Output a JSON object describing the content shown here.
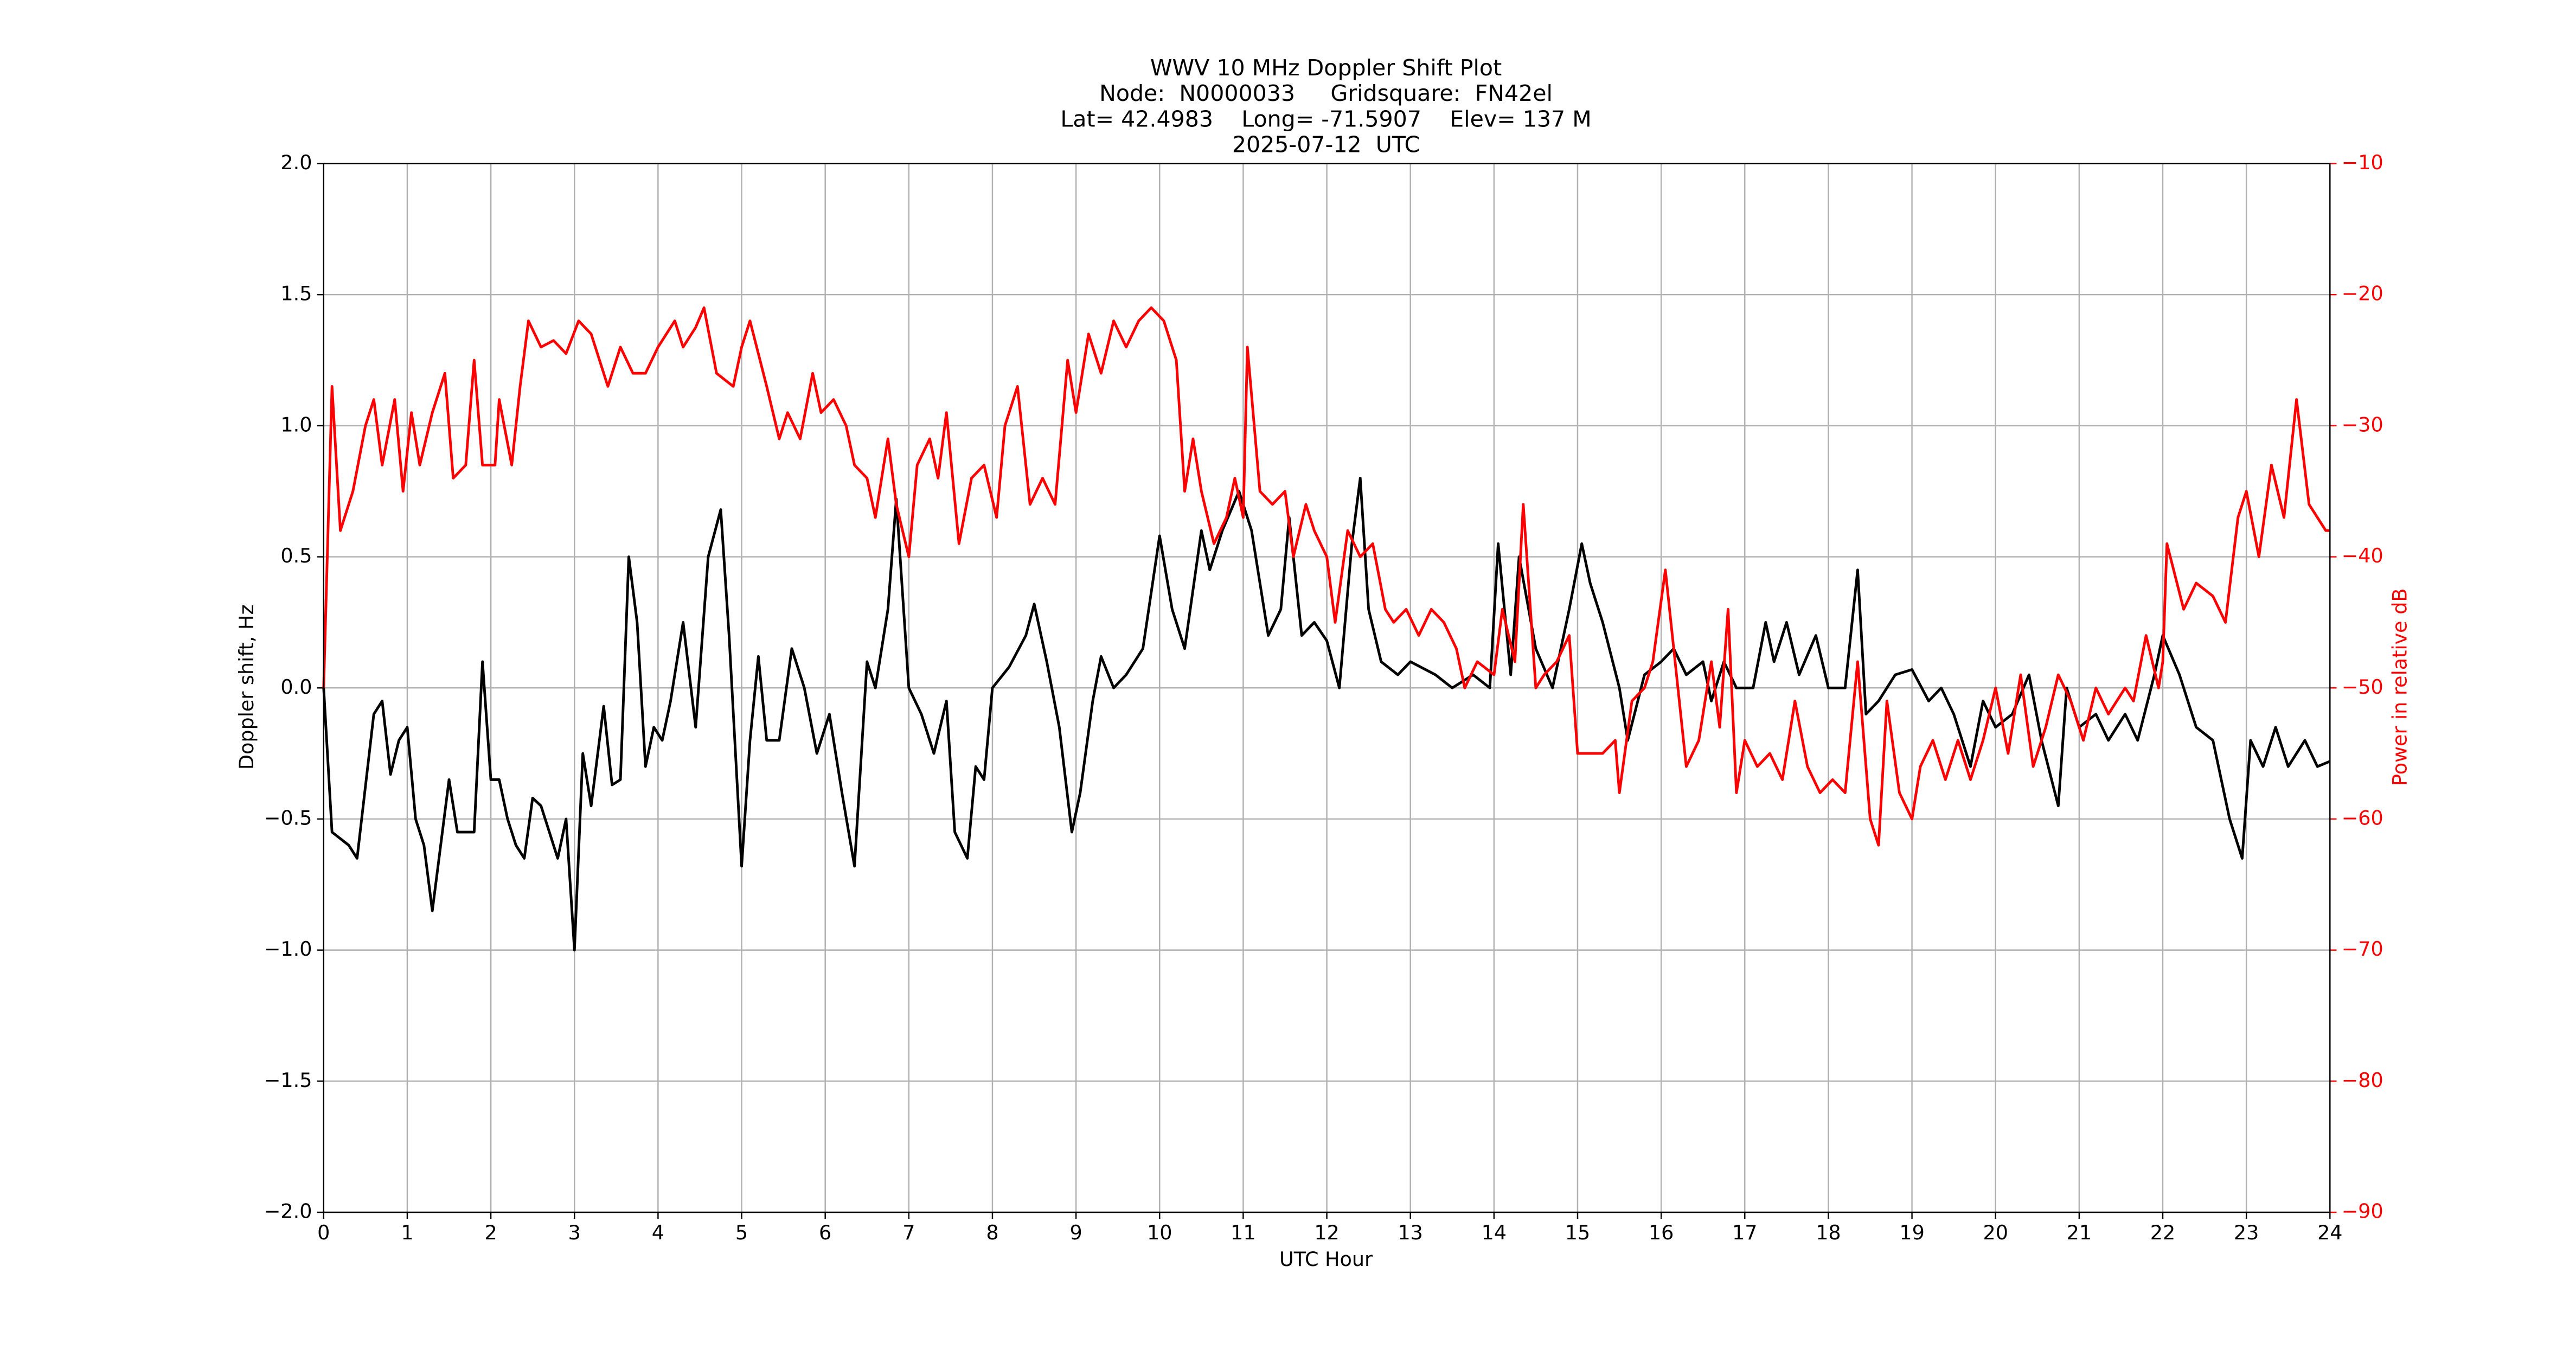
{
  "chart_data": {
    "type": "line",
    "title": [
      "WWV 10 MHz Doppler Shift Plot",
      "Node:  N0000033     Gridsquare:  FN42el",
      "Lat= 42.4983    Long= -71.5907    Elev= 137 M",
      "2025-07-12  UTC"
    ],
    "xlabel": "UTC Hour",
    "ylabel": "Doppler shift, Hz",
    "y2label": "Power in relative dB",
    "xlim": [
      0,
      24
    ],
    "xticks": [
      0,
      1,
      2,
      3,
      4,
      5,
      6,
      7,
      8,
      9,
      10,
      11,
      12,
      13,
      14,
      15,
      16,
      17,
      18,
      19,
      20,
      21,
      22,
      23,
      24
    ],
    "ylim": [
      -2,
      2
    ],
    "yticks": [
      {
        "value": -2,
        "label": "−2.0"
      },
      {
        "value": -1.5,
        "label": "−1.5"
      },
      {
        "value": -1,
        "label": "−1.0"
      },
      {
        "value": -0.5,
        "label": "−0.5"
      },
      {
        "value": 0,
        "label": "0.0"
      },
      {
        "value": 0.5,
        "label": "0.5"
      },
      {
        "value": 1,
        "label": "1.0"
      },
      {
        "value": 1.5,
        "label": "1.5"
      },
      {
        "value": 2,
        "label": "2.0"
      }
    ],
    "y2lim": [
      -90,
      -10
    ],
    "y2ticks": [
      {
        "value": -90,
        "label": "−90"
      },
      {
        "value": -80,
        "label": "−80"
      },
      {
        "value": -70,
        "label": "−70"
      },
      {
        "value": -60,
        "label": "−60"
      },
      {
        "value": -50,
        "label": "−50"
      },
      {
        "value": -40,
        "label": "−40"
      },
      {
        "value": -30,
        "label": "−30"
      },
      {
        "value": -20,
        "label": "−20"
      },
      {
        "value": -10,
        "label": "−10"
      }
    ],
    "grid": true,
    "y2color": "#ff0000",
    "series": [
      {
        "color": "#000000",
        "axis": "y",
        "x": [
          0,
          0.1,
          0.3,
          0.4,
          0.6,
          0.7,
          0.8,
          0.9,
          1.0,
          1.1,
          1.2,
          1.3,
          1.5,
          1.6,
          1.8,
          1.9,
          2.0,
          2.1,
          2.2,
          2.3,
          2.4,
          2.5,
          2.6,
          2.8,
          2.9,
          3.0,
          3.1,
          3.2,
          3.35,
          3.45,
          3.55,
          3.65,
          3.75,
          3.85,
          3.95,
          4.05,
          4.15,
          4.3,
          4.45,
          4.6,
          4.75,
          4.85,
          5.0,
          5.1,
          5.2,
          5.3,
          5.45,
          5.6,
          5.75,
          5.9,
          6.05,
          6.2,
          6.35,
          6.5,
          6.6,
          6.75,
          6.85,
          7.0,
          7.15,
          7.3,
          7.45,
          7.55,
          7.7,
          7.8,
          7.9,
          8.0,
          8.2,
          8.4,
          8.5,
          8.65,
          8.8,
          8.95,
          9.05,
          9.2,
          9.3,
          9.45,
          9.6,
          9.8,
          10.0,
          10.15,
          10.3,
          10.5,
          10.6,
          10.75,
          10.95,
          11.1,
          11.3,
          11.45,
          11.55,
          11.7,
          11.85,
          12.0,
          12.15,
          12.3,
          12.4,
          12.5,
          12.65,
          12.85,
          13.0,
          13.3,
          13.5,
          13.75,
          13.95,
          14.05,
          14.2,
          14.3,
          14.5,
          14.7,
          14.9,
          15.05,
          15.15,
          15.3,
          15.5,
          15.6,
          15.8,
          16.0,
          16.15,
          16.3,
          16.5,
          16.6,
          16.75,
          16.9,
          17.1,
          17.25,
          17.35,
          17.5,
          17.65,
          17.85,
          18.0,
          18.2,
          18.35,
          18.45,
          18.6,
          18.8,
          19.0,
          19.2,
          19.35,
          19.5,
          19.7,
          19.85,
          20.0,
          20.2,
          20.4,
          20.55,
          20.75,
          20.85,
          21.0,
          21.2,
          21.35,
          21.55,
          21.7,
          21.9,
          22.0,
          22.2,
          22.4,
          22.6,
          22.8,
          22.95,
          23.05,
          23.2,
          23.35,
          23.5,
          23.7,
          23.85,
          24.0
        ],
        "values": [
          0,
          -0.55,
          -0.6,
          -0.65,
          -0.1,
          -0.05,
          -0.33,
          -0.2,
          -0.15,
          -0.5,
          -0.6,
          -0.85,
          -0.35,
          -0.55,
          -0.55,
          0.1,
          -0.35,
          -0.35,
          -0.5,
          -0.6,
          -0.65,
          -0.42,
          -0.45,
          -0.65,
          -0.5,
          -1.0,
          -0.25,
          -0.45,
          -0.07,
          -0.37,
          -0.35,
          0.5,
          0.25,
          -0.3,
          -0.15,
          -0.2,
          -0.05,
          0.25,
          -0.15,
          0.5,
          0.68,
          0.2,
          -0.68,
          -0.2,
          0.12,
          -0.2,
          -0.2,
          0.15,
          0,
          -0.25,
          -0.1,
          -0.4,
          -0.68,
          0.1,
          0,
          0.3,
          0.72,
          0,
          -0.1,
          -0.25,
          -0.05,
          -0.55,
          -0.65,
          -0.3,
          -0.35,
          0,
          0.08,
          0.2,
          0.32,
          0.1,
          -0.15,
          -0.55,
          -0.4,
          -0.05,
          0.12,
          0,
          0.05,
          0.15,
          0.58,
          0.3,
          0.15,
          0.6,
          0.45,
          0.6,
          0.75,
          0.6,
          0.2,
          0.3,
          0.65,
          0.2,
          0.25,
          0.18,
          0,
          0.55,
          0.8,
          0.3,
          0.1,
          0.05,
          0.1,
          0.05,
          0,
          0.05,
          0,
          0.55,
          0.05,
          0.5,
          0.15,
          0,
          0.3,
          0.55,
          0.4,
          0.25,
          0,
          -0.2,
          0.05,
          0.1,
          0.15,
          0.05,
          0.1,
          -0.05,
          0.1,
          0,
          0,
          0.25,
          0.1,
          0.25,
          0.05,
          0.2,
          0,
          0,
          0.45,
          -0.1,
          -0.05,
          0.05,
          0.07,
          -0.05,
          0,
          -0.1,
          -0.3,
          -0.05,
          -0.15,
          -0.1,
          0.05,
          -0.2,
          -0.45,
          0,
          -0.15,
          -0.1,
          -0.2,
          -0.1,
          -0.2,
          0.05,
          0.2,
          0.05,
          -0.15,
          -0.2,
          -0.5,
          -0.65,
          -0.2,
          -0.3,
          -0.15,
          -0.3,
          -0.2,
          -0.3,
          -0.28
        ]
      },
      {
        "color": "#ff0000",
        "axis": "y2",
        "x": [
          0,
          0.1,
          0.2,
          0.35,
          0.5,
          0.6,
          0.7,
          0.85,
          0.95,
          1.05,
          1.15,
          1.3,
          1.45,
          1.55,
          1.7,
          1.8,
          1.9,
          2.05,
          2.1,
          2.25,
          2.35,
          2.45,
          2.6,
          2.75,
          2.9,
          3.05,
          3.2,
          3.4,
          3.55,
          3.7,
          3.85,
          4.0,
          4.2,
          4.3,
          4.45,
          4.55,
          4.7,
          4.9,
          5.0,
          5.1,
          5.3,
          5.45,
          5.55,
          5.7,
          5.85,
          5.95,
          6.1,
          6.25,
          6.35,
          6.5,
          6.6,
          6.75,
          6.85,
          7.0,
          7.1,
          7.25,
          7.35,
          7.45,
          7.6,
          7.75,
          7.9,
          8.05,
          8.15,
          8.3,
          8.45,
          8.6,
          8.75,
          8.9,
          9.0,
          9.15,
          9.3,
          9.45,
          9.6,
          9.75,
          9.9,
          10.05,
          10.2,
          10.3,
          10.4,
          10.5,
          10.65,
          10.8,
          10.9,
          11.0,
          11.05,
          11.2,
          11.35,
          11.5,
          11.6,
          11.75,
          11.85,
          12.0,
          12.1,
          12.25,
          12.4,
          12.55,
          12.7,
          12.8,
          12.95,
          13.1,
          13.25,
          13.4,
          13.55,
          13.65,
          13.8,
          14.0,
          14.1,
          14.25,
          14.35,
          14.5,
          14.6,
          14.75,
          14.9,
          15.0,
          15.15,
          15.3,
          15.45,
          15.5,
          15.65,
          15.8,
          15.9,
          16.05,
          16.15,
          16.3,
          16.45,
          16.6,
          16.7,
          16.8,
          16.9,
          17.0,
          17.15,
          17.3,
          17.45,
          17.6,
          17.75,
          17.9,
          18.05,
          18.2,
          18.35,
          18.5,
          18.6,
          18.7,
          18.85,
          19.0,
          19.1,
          19.25,
          19.4,
          19.55,
          19.7,
          19.85,
          20.0,
          20.15,
          20.3,
          20.45,
          20.6,
          20.75,
          20.9,
          21.05,
          21.2,
          21.35,
          21.55,
          21.65,
          21.8,
          21.95,
          22.0,
          22.05,
          22.25,
          22.4,
          22.6,
          22.75,
          22.9,
          23.0,
          23.15,
          23.3,
          23.45,
          23.6,
          23.75,
          23.95,
          24.0
        ],
        "values": [
          -50,
          -27,
          -38,
          -35,
          -30,
          -28,
          -33,
          -28,
          -35,
          -29,
          -33,
          -29,
          -26,
          -34,
          -33,
          -25,
          -33,
          -33,
          -28,
          -33,
          -27,
          -22,
          -24,
          -23.5,
          -24.5,
          -22,
          -23,
          -27,
          -24,
          -26,
          -26,
          -24,
          -22,
          -24,
          -22.5,
          -21,
          -26,
          -27,
          -24,
          -22,
          -27,
          -31,
          -29,
          -31,
          -26,
          -29,
          -28,
          -30,
          -33,
          -34,
          -37,
          -31,
          -36,
          -40,
          -33,
          -31,
          -34,
          -29,
          -39,
          -34,
          -33,
          -37,
          -30,
          -27,
          -36,
          -34,
          -36,
          -25,
          -29,
          -23,
          -26,
          -22,
          -24,
          -22,
          -21,
          -22,
          -25,
          -35,
          -31,
          -35,
          -39,
          -37,
          -34,
          -37,
          -24,
          -35,
          -36,
          -35,
          -40,
          -36,
          -38,
          -40,
          -45,
          -38,
          -40,
          -39,
          -44,
          -45,
          -44,
          -46,
          -44,
          -45,
          -47,
          -50,
          -48,
          -49,
          -44,
          -48,
          -36,
          -50,
          -49,
          -48,
          -46,
          -55,
          -55,
          -55,
          -54,
          -58,
          -51,
          -50,
          -48,
          -41,
          -47,
          -56,
          -54,
          -48,
          -53,
          -44,
          -58,
          -54,
          -56,
          -55,
          -57,
          -51,
          -56,
          -58,
          -57,
          -58,
          -48,
          -60,
          -62,
          -51,
          -58,
          -60,
          -56,
          -54,
          -57,
          -54,
          -57,
          -54,
          -50,
          -55,
          -49,
          -56,
          -53,
          -49,
          -51,
          -54,
          -50,
          -52,
          -50,
          -51,
          -46,
          -50,
          -48,
          -39,
          -44,
          -42,
          -43,
          -45,
          -37,
          -35,
          -40,
          -33,
          -37,
          -28,
          -36,
          -38,
          -38
        ]
      }
    ]
  }
}
